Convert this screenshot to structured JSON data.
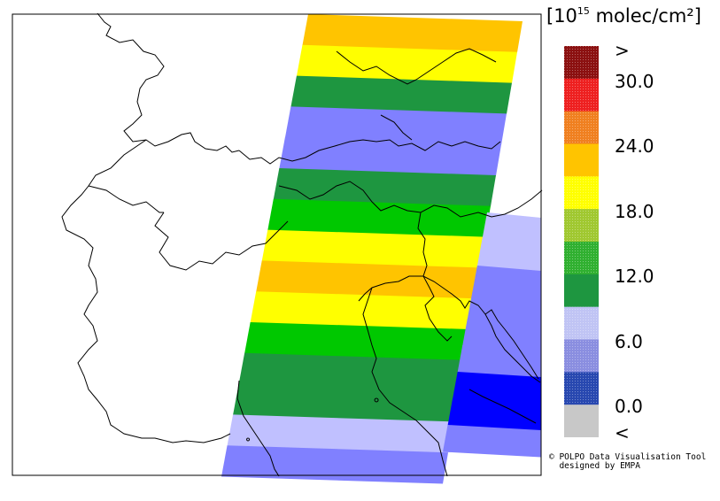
{
  "colorbar": {
    "unit": {
      "bracket_open": "[10",
      "power": "15",
      "rest": " molec/cm²]"
    },
    "labels": [
      ">",
      "30.0",
      "24.0",
      "18.0",
      "12.0",
      "6.0",
      "0.0",
      "<"
    ],
    "bins_top_to_bottom": [
      {
        "range": "> 30.0",
        "color": "#8b1010",
        "pattern": "dots"
      },
      {
        "range": "27.0–30.0",
        "color": "#ee2020",
        "pattern": "dots"
      },
      {
        "range": "24.0–27.0",
        "color": "#f08020",
        "pattern": "dots"
      },
      {
        "range": "21.0–24.0",
        "color": "#ffc400",
        "pattern": "none"
      },
      {
        "range": "18.0–21.0",
        "color": "#ffff00",
        "pattern": "dots"
      },
      {
        "range": "15.0–18.0",
        "color": "#a0c830",
        "pattern": "dots"
      },
      {
        "range": "12.0–15.0",
        "color": "#30b030",
        "pattern": "dots"
      },
      {
        "range": "9.0–12.0",
        "color": "#1e9640",
        "pattern": "none"
      },
      {
        "range": "6.0–9.0",
        "color": "#c0c4f4",
        "pattern": "dots"
      },
      {
        "range": "3.0–6.0",
        "color": "#8a8ee0",
        "pattern": "dots"
      },
      {
        "range": "0.0–3.0",
        "color": "#2848b0",
        "pattern": "dots"
      },
      {
        "range": "< 0.0",
        "color": "#c8c8c8",
        "pattern": "none"
      }
    ]
  },
  "credit": {
    "line1": "© POLPO Data Visualisation Tool",
    "line2": "  designed by EMPA"
  },
  "swath_rows_top_to_bottom": [
    {
      "color": "#ffc400"
    },
    {
      "color": "#ffff00"
    },
    {
      "color": "#1e9640"
    },
    {
      "color": "#8080ff"
    },
    {
      "color": "#8080ff"
    },
    {
      "color": "#1e9640"
    },
    {
      "color": "#00c800"
    },
    {
      "color": "#ffff00"
    },
    {
      "color": "#ffc400"
    },
    {
      "color": "#ffff00"
    },
    {
      "color": "#00c800"
    },
    {
      "color": "#1e9640"
    },
    {
      "color": "#1e9640"
    },
    {
      "color": "#c0c0ff"
    },
    {
      "color": "#8080ff"
    }
  ],
  "side_swath_rows_top_to_bottom": [
    {
      "color": "#c0c0ff"
    },
    {
      "color": "#c0c0ff"
    },
    {
      "color": "#8080ff"
    },
    {
      "color": "#8080ff"
    },
    {
      "color": "#8080ff"
    },
    {
      "color": "#8080ff"
    },
    {
      "color": "#0000ff"
    },
    {
      "color": "#0000ff"
    },
    {
      "color": "#8080ff"
    }
  ]
}
